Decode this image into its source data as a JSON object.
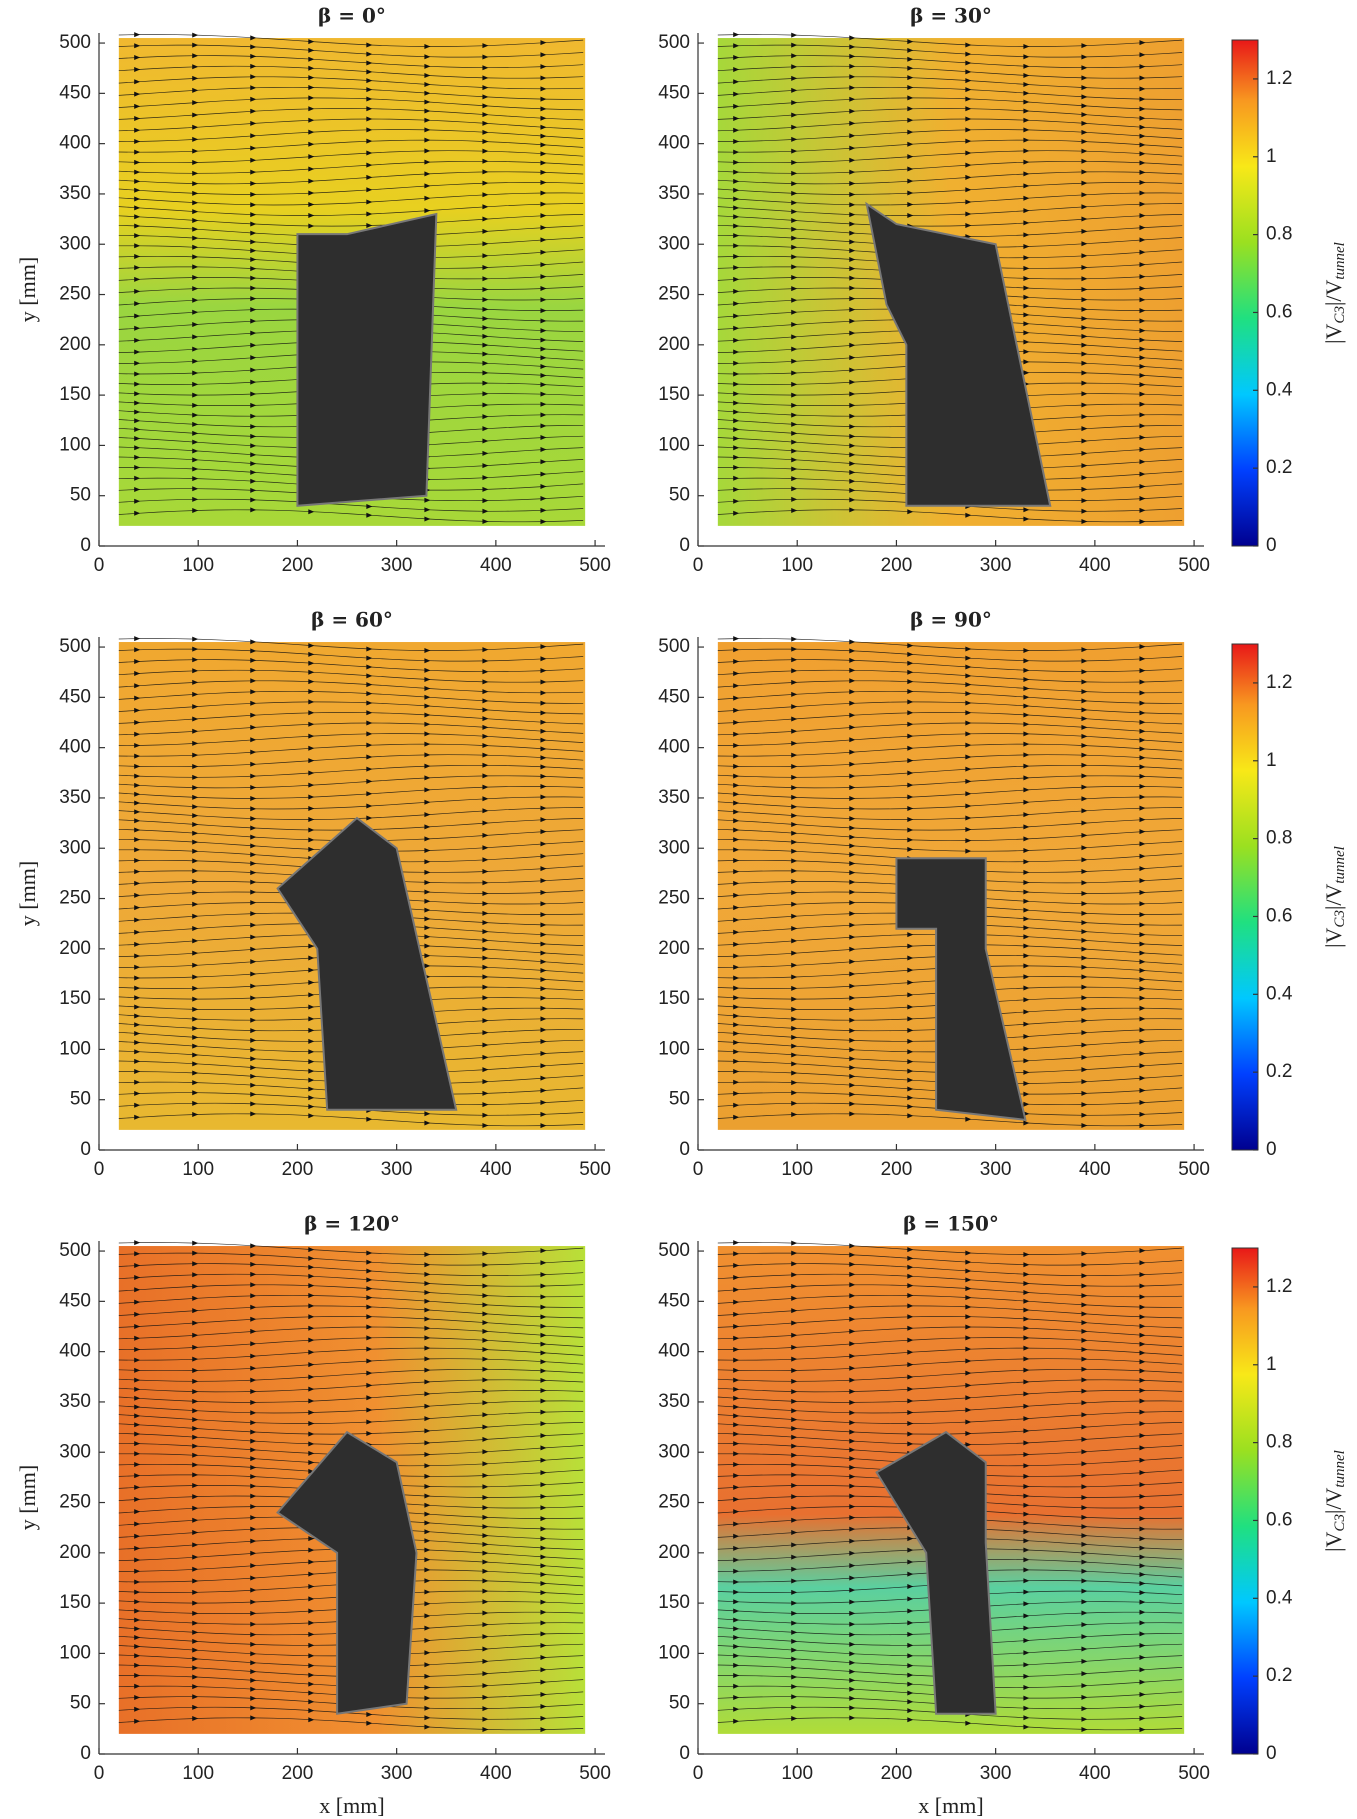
{
  "chart_data": [
    {
      "type": "field",
      "title": "β = 0°",
      "xlim": [
        0,
        510
      ],
      "ylim": [
        0,
        510
      ],
      "xticks": [
        0,
        100,
        200,
        300,
        400,
        500
      ],
      "yticks": [
        0,
        50,
        100,
        150,
        200,
        250,
        300,
        350,
        400,
        450,
        500
      ],
      "ylabel": "y [mm]"
    },
    {
      "type": "field",
      "title": "β = 30°",
      "xlim": [
        0,
        510
      ],
      "ylim": [
        0,
        510
      ],
      "xticks": [
        0,
        100,
        200,
        300,
        400,
        500
      ],
      "yticks": [
        0,
        50,
        100,
        150,
        200,
        250,
        300,
        350,
        400,
        450,
        500
      ],
      "colorbar": {
        "label": [
          "|V",
          "C3",
          "|/V",
          "tunnel"
        ],
        "lim": [
          0,
          1.3
        ],
        "ticks": [
          0,
          0.2,
          0.4,
          0.6,
          0.8,
          1,
          1.2
        ]
      }
    },
    {
      "type": "field",
      "title": "β = 60°",
      "xlim": [
        0,
        510
      ],
      "ylim": [
        0,
        510
      ],
      "xticks": [
        0,
        100,
        200,
        300,
        400,
        500
      ],
      "yticks": [
        0,
        50,
        100,
        150,
        200,
        250,
        300,
        350,
        400,
        450,
        500
      ],
      "ylabel": "y [mm]"
    },
    {
      "type": "field",
      "title": "β = 90°",
      "xlim": [
        0,
        510
      ],
      "ylim": [
        0,
        510
      ],
      "xticks": [
        0,
        100,
        200,
        300,
        400,
        500
      ],
      "yticks": [
        0,
        50,
        100,
        150,
        200,
        250,
        300,
        350,
        400,
        450,
        500
      ],
      "colorbar": {
        "label": [
          "|V",
          "C3",
          "|/V",
          "tunnel"
        ],
        "lim": [
          0,
          1.3
        ],
        "ticks": [
          0,
          0.2,
          0.4,
          0.6,
          0.8,
          1,
          1.2
        ]
      }
    },
    {
      "type": "field",
      "title": "β = 120°",
      "xlim": [
        0,
        510
      ],
      "ylim": [
        0,
        510
      ],
      "xticks": [
        0,
        100,
        200,
        300,
        400,
        500
      ],
      "yticks": [
        0,
        50,
        100,
        150,
        200,
        250,
        300,
        350,
        400,
        450,
        500
      ],
      "ylabel": "y [mm]",
      "xlabel": "x [mm]"
    },
    {
      "type": "field",
      "title": "β = 150°",
      "xlim": [
        0,
        510
      ],
      "ylim": [
        0,
        510
      ],
      "xticks": [
        0,
        100,
        200,
        300,
        400,
        500
      ],
      "yticks": [
        0,
        50,
        100,
        150,
        200,
        250,
        300,
        350,
        400,
        450,
        500
      ],
      "xlabel": "x [mm]",
      "colorbar": {
        "label": [
          "|V",
          "C3",
          "|/V",
          "tunnel"
        ],
        "lim": [
          0,
          1.3
        ],
        "ticks": [
          0,
          0.2,
          0.4,
          0.6,
          0.8,
          1,
          1.2
        ]
      }
    }
  ]
}
